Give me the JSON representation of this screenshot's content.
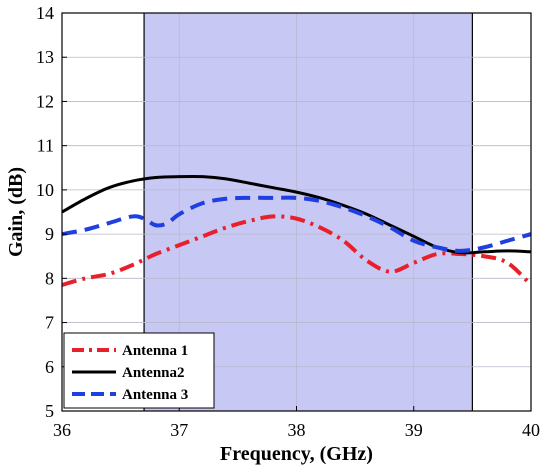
{
  "chart_data": {
    "type": "line",
    "xlabel": "Frequency, (GHz)",
    "ylabel": "Gain, (dB)",
    "xlim": [
      36,
      40
    ],
    "ylim": [
      5,
      14
    ],
    "xticks": [
      36,
      37,
      38,
      39,
      40
    ],
    "yticks": [
      5,
      6,
      7,
      8,
      9,
      10,
      11,
      12,
      13,
      14
    ],
    "grid": true,
    "legend_position": "bottom-left",
    "shaded_band": {
      "x_start": 36.7,
      "x_end": 39.5,
      "color": "#c8c8f5"
    },
    "series": [
      {
        "name": "Antenna 1",
        "color": "#e8202a",
        "style": "dash-dot",
        "x": [
          36.0,
          36.2,
          36.4,
          36.6,
          36.8,
          37.0,
          37.2,
          37.4,
          37.6,
          37.8,
          38.0,
          38.2,
          38.4,
          38.6,
          38.8,
          39.0,
          39.2,
          39.4,
          39.6,
          39.8,
          40.0
        ],
        "y": [
          7.85,
          8.0,
          8.1,
          8.3,
          8.55,
          8.75,
          8.95,
          9.15,
          9.3,
          9.4,
          9.35,
          9.15,
          8.85,
          8.4,
          8.15,
          8.35,
          8.55,
          8.55,
          8.5,
          8.35,
          7.85
        ]
      },
      {
        "name": "Antenna2",
        "color": "#000000",
        "style": "solid",
        "x": [
          36.0,
          36.2,
          36.4,
          36.6,
          36.8,
          37.0,
          37.2,
          37.4,
          37.6,
          37.8,
          38.0,
          38.2,
          38.4,
          38.6,
          38.8,
          39.0,
          39.2,
          39.4,
          39.6,
          39.8,
          40.0
        ],
        "y": [
          9.5,
          9.8,
          10.05,
          10.2,
          10.28,
          10.3,
          10.3,
          10.25,
          10.15,
          10.05,
          9.95,
          9.82,
          9.65,
          9.45,
          9.2,
          8.95,
          8.7,
          8.58,
          8.6,
          8.62,
          8.6
        ]
      },
      {
        "name": "Antenna 3",
        "color": "#1f3fe0",
        "style": "dashed",
        "x": [
          36.0,
          36.2,
          36.4,
          36.6,
          36.7,
          36.8,
          36.9,
          37.0,
          37.2,
          37.4,
          37.6,
          37.8,
          38.0,
          38.2,
          38.4,
          38.6,
          38.8,
          39.0,
          39.2,
          39.4,
          39.6,
          39.8,
          40.0
        ],
        "y": [
          9.0,
          9.1,
          9.25,
          9.4,
          9.35,
          9.2,
          9.25,
          9.45,
          9.7,
          9.8,
          9.82,
          9.82,
          9.82,
          9.75,
          9.6,
          9.4,
          9.15,
          8.85,
          8.7,
          8.62,
          8.7,
          8.85,
          9.0
        ]
      }
    ]
  }
}
